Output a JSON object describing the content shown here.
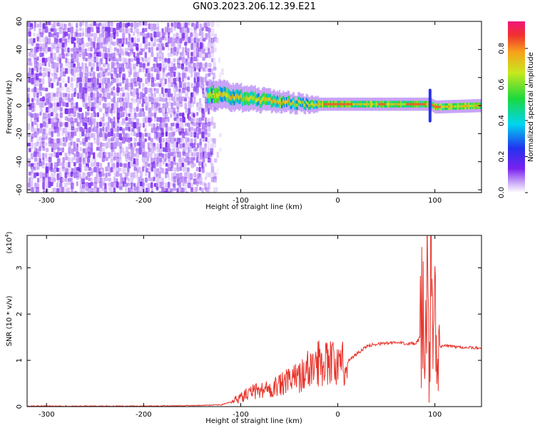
{
  "title": "GN03.2023.206.12.39.E21",
  "colors": {
    "snr_line": "#e8332a",
    "spectrogram_low": "#7a22ee",
    "spectrogram_high": "#ee1f3c"
  },
  "chart_data": [
    {
      "type": "heatmap",
      "xlabel": "Height of straight line (km)",
      "ylabel": "Frequency (Hz)",
      "xlim": [
        -320,
        148
      ],
      "ylim": [
        -62,
        60
      ],
      "xticks": [
        -300,
        -200,
        -100,
        0,
        100
      ],
      "yticks": [
        60,
        40,
        20,
        0,
        -20,
        -40,
        -60
      ],
      "colorbar": {
        "label": "Normalized spectral amplitude",
        "range": [
          0,
          0.95
        ],
        "ticks": [
          0.0,
          0.2,
          0.4,
          0.6,
          0.8
        ],
        "colormap": "rainbow"
      },
      "features": {
        "noise_region_x": [
          -320,
          -120
        ],
        "signal_band_center_hz": [
          {
            "x": -130,
            "f": 8
          },
          {
            "x": -80,
            "f": 4
          },
          {
            "x": -30,
            "f": 1
          },
          {
            "x": 0,
            "f": 1
          },
          {
            "x": 50,
            "f": 1
          },
          {
            "x": 95,
            "f": 1
          },
          {
            "x": 100,
            "f": -1
          },
          {
            "x": 148,
            "f": 0
          }
        ]
      }
    },
    {
      "type": "line",
      "xlabel": "Height of straight line (km)",
      "ylabel": "SNR (10 * v/v)",
      "y_multiplier": "(x10",
      "y_multiplier_exp": "4",
      "y_multiplier_close": ")",
      "xlim": [
        -320,
        148
      ],
      "ylim": [
        0,
        3.7
      ],
      "xticks": [
        -300,
        -200,
        -100,
        0,
        100
      ],
      "yticks": [
        0,
        1,
        2,
        3
      ],
      "series": [
        {
          "x": [
            -320,
            -250,
            -200,
            -150,
            -120,
            -110,
            -100,
            -90,
            -80,
            -70,
            -60,
            -50,
            -40,
            -30,
            -20,
            -10,
            -5,
            0,
            10,
            20,
            30,
            40,
            50,
            60,
            70,
            80,
            85,
            88,
            90,
            92,
            94,
            96,
            98,
            100,
            102,
            105,
            110,
            120,
            130,
            148
          ],
          "y": [
            0.01,
            0.01,
            0.01,
            0.02,
            0.04,
            0.1,
            0.2,
            0.3,
            0.35,
            0.4,
            0.45,
            0.55,
            0.65,
            0.8,
            0.95,
            1.05,
            0.95,
            0.85,
            0.98,
            1.15,
            1.3,
            1.36,
            1.37,
            1.38,
            1.37,
            1.35,
            1.5,
            2.2,
            1.0,
            2.5,
            0.8,
            3.7,
            0.5,
            2.3,
            0.6,
            1.3,
            1.32,
            1.3,
            1.28,
            1.26
          ]
        }
      ]
    }
  ]
}
